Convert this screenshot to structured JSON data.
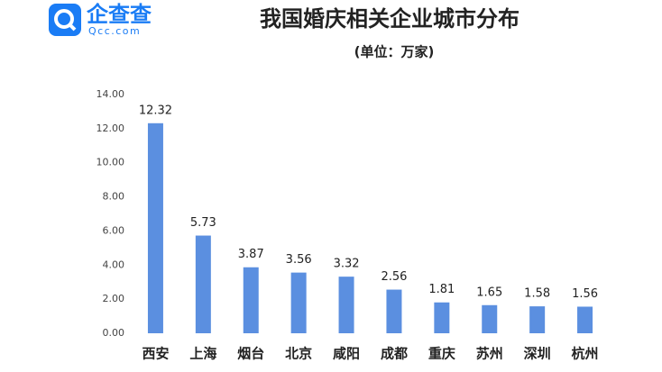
{
  "logo": {
    "name": "企查查",
    "url": "Qcc.com"
  },
  "chart_data": {
    "type": "bar",
    "title": "我国婚庆相关企业城市分布",
    "subtitle": "(单位：万家)",
    "categories": [
      "西安",
      "上海",
      "烟台",
      "北京",
      "咸阳",
      "成都",
      "重庆",
      "苏州",
      "深圳",
      "杭州"
    ],
    "values": [
      12.32,
      5.73,
      3.87,
      3.56,
      3.32,
      2.56,
      1.81,
      1.65,
      1.58,
      1.56
    ],
    "color": "#5b8fe0",
    "ylim": [
      0,
      14
    ],
    "yticks": [
      {
        "value": 0,
        "label": "0.00"
      },
      {
        "value": 2,
        "label": "2.00"
      },
      {
        "value": 4,
        "label": "4.00"
      },
      {
        "value": 6,
        "label": "6.00"
      },
      {
        "value": 8,
        "label": "8.00"
      },
      {
        "value": 10,
        "label": "10.00"
      },
      {
        "value": 12,
        "label": "12.00"
      },
      {
        "value": 14,
        "label": "14.00"
      }
    ],
    "grid": false
  }
}
